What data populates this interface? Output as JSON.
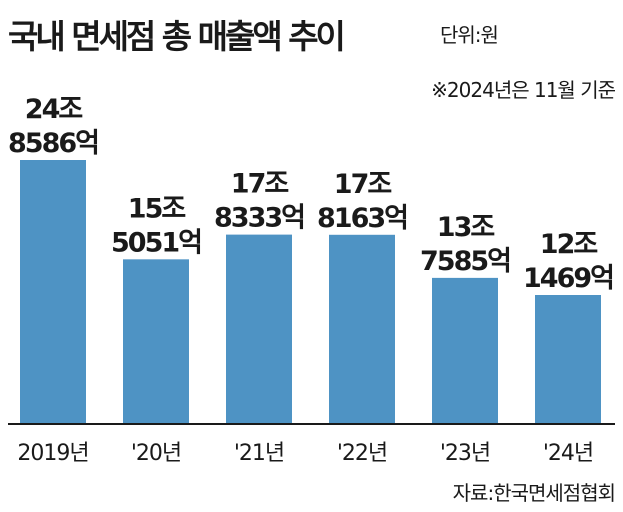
{
  "title": "국내 면세점 총 매출액 추이",
  "unit_label": "단위:원",
  "note": "※2024년은 11월 기준",
  "source": "자료:한국면세점협회",
  "colors": {
    "bar": "#4e93c4",
    "axis": "#1a1a1a"
  },
  "chart_data": {
    "type": "bar",
    "title": "국내 면세점 총 매출액 추이",
    "xlabel": "",
    "ylabel": "",
    "categories": [
      "2019년",
      "'20년",
      "'21년",
      "'22년",
      "'23년",
      "'24년"
    ],
    "values": [
      248586,
      155051,
      178333,
      178163,
      137585,
      121469
    ],
    "value_unit": "억원",
    "data_labels": [
      [
        "24조",
        "8586억"
      ],
      [
        "15조",
        "5051억"
      ],
      [
        "17조",
        "8333억"
      ],
      [
        "17조",
        "8163억"
      ],
      [
        "13조",
        "7585억"
      ],
      [
        "12조",
        "1469억"
      ]
    ],
    "ylim": [
      0,
      248586
    ],
    "grid": false,
    "legend": "none"
  }
}
